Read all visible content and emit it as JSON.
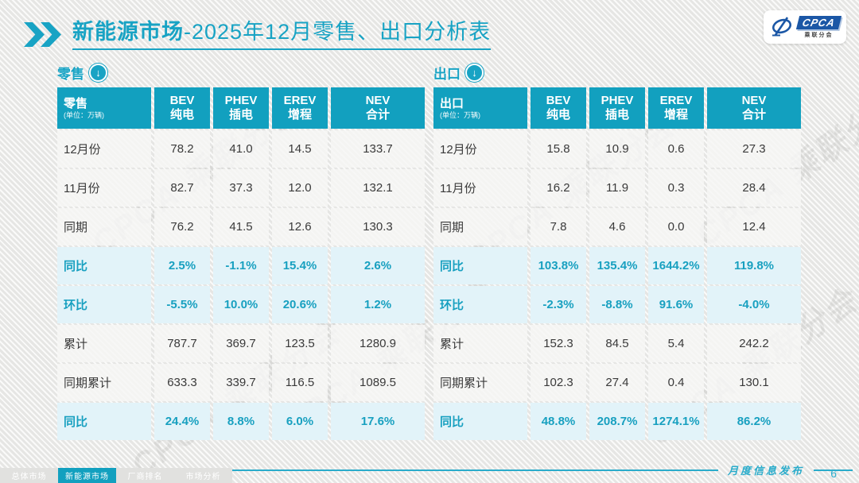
{
  "header": {
    "title_bold": "新能源市场",
    "title_rest": "-2025年12月零售、出口分析表",
    "logo": {
      "text": "CPCA",
      "subtext": "乘联分会"
    }
  },
  "watermark": {
    "text": "CPCA 乘联分会"
  },
  "tables": [
    {
      "section_label": "零售",
      "unit_label": "(单位：万辆)",
      "columns": [
        {
          "title": "BEV",
          "sub": "纯电"
        },
        {
          "title": "PHEV",
          "sub": "插电"
        },
        {
          "title": "EREV",
          "sub": "增程"
        },
        {
          "title": "NEV",
          "sub": "合计"
        }
      ],
      "rows": [
        {
          "label": "12月份",
          "type": "normal",
          "values": [
            "78.2",
            "41.0",
            "14.5",
            "133.7"
          ]
        },
        {
          "label": "11月份",
          "type": "normal",
          "values": [
            "82.7",
            "37.3",
            "12.0",
            "132.1"
          ]
        },
        {
          "label": "同期",
          "type": "normal",
          "values": [
            "76.2",
            "41.5",
            "12.6",
            "130.3"
          ]
        },
        {
          "label": "同比",
          "type": "rate",
          "values": [
            "2.5%",
            "-1.1%",
            "15.4%",
            "2.6%"
          ]
        },
        {
          "label": "环比",
          "type": "rate",
          "values": [
            "-5.5%",
            "10.0%",
            "20.6%",
            "1.2%"
          ]
        },
        {
          "label": "累计",
          "type": "normal",
          "values": [
            "787.7",
            "369.7",
            "123.5",
            "1280.9"
          ]
        },
        {
          "label": "同期累计",
          "type": "normal",
          "values": [
            "633.3",
            "339.7",
            "116.5",
            "1089.5"
          ]
        },
        {
          "label": "同比",
          "type": "rate",
          "values": [
            "24.4%",
            "8.8%",
            "6.0%",
            "17.6%"
          ]
        }
      ]
    },
    {
      "section_label": "出口",
      "unit_label": "(单位：万辆)",
      "columns": [
        {
          "title": "BEV",
          "sub": "纯电"
        },
        {
          "title": "PHEV",
          "sub": "插电"
        },
        {
          "title": "EREV",
          "sub": "增程"
        },
        {
          "title": "NEV",
          "sub": "合计"
        }
      ],
      "rows": [
        {
          "label": "12月份",
          "type": "normal",
          "values": [
            "15.8",
            "10.9",
            "0.6",
            "27.3"
          ]
        },
        {
          "label": "11月份",
          "type": "normal",
          "values": [
            "16.2",
            "11.9",
            "0.3",
            "28.4"
          ]
        },
        {
          "label": "同期",
          "type": "normal",
          "values": [
            "7.8",
            "4.6",
            "0.0",
            "12.4"
          ]
        },
        {
          "label": "同比",
          "type": "rate",
          "values": [
            "103.8%",
            "135.4%",
            "1644.2%",
            "119.8%"
          ]
        },
        {
          "label": "环比",
          "type": "rate",
          "values": [
            "-2.3%",
            "-8.8%",
            "91.6%",
            "-4.0%"
          ]
        },
        {
          "label": "累计",
          "type": "normal",
          "values": [
            "152.3",
            "84.5",
            "5.4",
            "242.2"
          ]
        },
        {
          "label": "同期累计",
          "type": "normal",
          "values": [
            "102.3",
            "27.4",
            "0.4",
            "130.1"
          ]
        },
        {
          "label": "同比",
          "type": "rate",
          "values": [
            "48.8%",
            "208.7%",
            "1274.1%",
            "86.2%"
          ]
        }
      ]
    }
  ],
  "footer": {
    "note": "月度信息发布",
    "page_number": "6",
    "tabs": [
      {
        "label": "总体市场",
        "active": false
      },
      {
        "label": "新能源市场",
        "active": true
      },
      {
        "label": "厂商排名",
        "active": false
      },
      {
        "label": "市场分析",
        "active": false
      }
    ]
  },
  "colors": {
    "accent_teal": "#12a0bf",
    "rate_row_bg": "#e2f3f9",
    "page_bg": "#ededeb",
    "logo_blue": "#1b57a6"
  }
}
